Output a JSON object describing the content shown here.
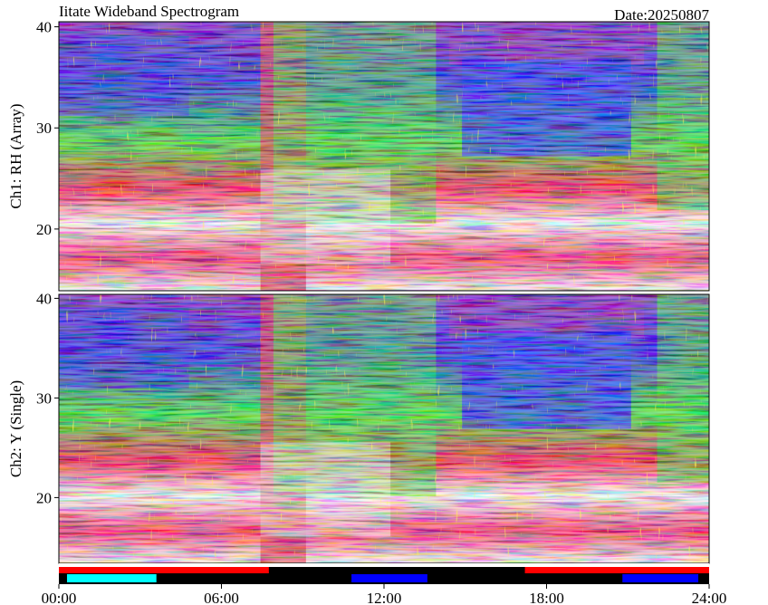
{
  "chart_data": {
    "type": "heatmap",
    "title": "Iitate Wideband Spectrogram",
    "subtitle": "Date:20250807",
    "xlim": [
      0,
      24
    ],
    "xticks": [
      {
        "value": 0,
        "label": "00:00"
      },
      {
        "value": 6,
        "label": "06:00"
      },
      {
        "value": 12,
        "label": "12:00"
      },
      {
        "value": 18,
        "label": "18:00"
      },
      {
        "value": 24,
        "label": "24:00"
      }
    ],
    "panels": [
      {
        "ylabel": "Ch1: RH (Array)",
        "ylim": [
          13.9,
          40.5
        ],
        "yticks": [
          20,
          30,
          40
        ]
      },
      {
        "ylabel": "Ch2: Y (Single)",
        "ylim": [
          13.4,
          40.4
        ],
        "yticks": [
          20,
          30,
          40
        ]
      }
    ],
    "status_bars": [
      {
        "row": 0,
        "start": 0,
        "end": 7.75,
        "color": "#ff0000"
      },
      {
        "row": 0,
        "start": 17.2,
        "end": 24,
        "color": "#ff0000"
      },
      {
        "row": 1,
        "start": 0.3,
        "end": 3.6,
        "color": "#00ffff"
      },
      {
        "row": 1,
        "start": 10.8,
        "end": 13.6,
        "color": "#0000ff"
      },
      {
        "row": 1,
        "start": 20.8,
        "end": 23.6,
        "color": "#0000ff"
      }
    ]
  }
}
